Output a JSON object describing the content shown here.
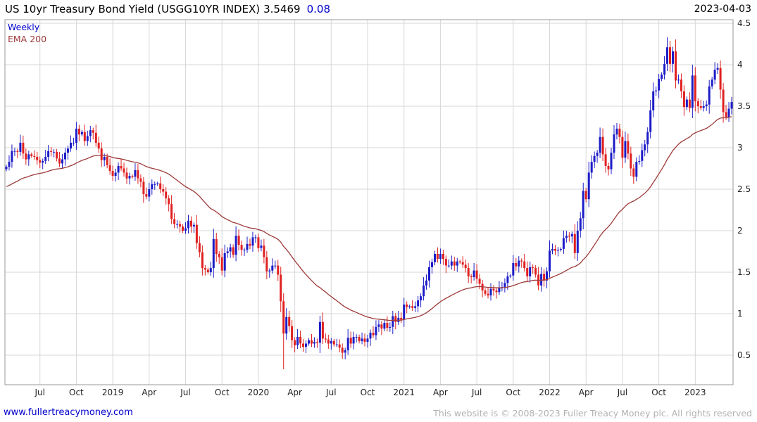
{
  "header": {
    "title": "US 10yr Treasury Bond Yield (USGG10YR INDEX)",
    "price": "3.5469",
    "change": "0.08",
    "date": "2023-04-03"
  },
  "legend": {
    "frequency": "Weekly",
    "overlay": "EMA 200"
  },
  "footer": {
    "site_link": "www.fullertreacymoney.com",
    "copyright": "This website is © 2008-2023 Fuller Treacy Money plc. All rights reserved"
  },
  "chart_data": {
    "type": "candlestick",
    "title": "US 10yr Treasury Bond Yield (USGG10YR INDEX)",
    "frequency": "Weekly",
    "overlay": "EMA 200",
    "last_price": 3.5469,
    "change": 0.08,
    "ylim": [
      0.14,
      4.54
    ],
    "grid": true,
    "y_ticks": [
      {
        "v": 4.5,
        "label": "4.5"
      },
      {
        "v": 4.0,
        "label": "4"
      },
      {
        "v": 3.5,
        "label": "3.5"
      },
      {
        "v": 3.0,
        "label": "3"
      },
      {
        "v": 2.5,
        "label": "2.5"
      },
      {
        "v": 2.0,
        "label": "2"
      },
      {
        "v": 1.5,
        "label": "1.5"
      },
      {
        "v": 1.0,
        "label": "1"
      },
      {
        "v": 0.5,
        "label": "0.5"
      }
    ],
    "x_ticks": [
      {
        "label": "Jul",
        "index": 12
      },
      {
        "label": "Oct",
        "index": 25
      },
      {
        "label": "2019",
        "index": 38
      },
      {
        "label": "Apr",
        "index": 51
      },
      {
        "label": "Jul",
        "index": 64
      },
      {
        "label": "Oct",
        "index": 77
      },
      {
        "label": "2020",
        "index": 90
      },
      {
        "label": "Apr",
        "index": 103
      },
      {
        "label": "Jul",
        "index": 116
      },
      {
        "label": "Oct",
        "index": 129
      },
      {
        "label": "2021",
        "index": 142
      },
      {
        "label": "Apr",
        "index": 155
      },
      {
        "label": "Jul",
        "index": 168
      },
      {
        "label": "Oct",
        "index": 181
      },
      {
        "label": "2022",
        "index": 194
      },
      {
        "label": "Apr",
        "index": 207
      },
      {
        "label": "Jul",
        "index": 220
      },
      {
        "label": "Oct",
        "index": 233
      },
      {
        "label": "2023",
        "index": 246
      }
    ],
    "first_open": 2.74,
    "weekly_closes": [
      2.77,
      2.83,
      2.96,
      2.96,
      2.95,
      3.06,
      2.93,
      2.86,
      2.92,
      2.9,
      2.89,
      2.85,
      2.82,
      2.84,
      2.89,
      2.96,
      2.95,
      2.95,
      2.87,
      2.81,
      2.86,
      2.94,
      2.99,
      3.06,
      3.06,
      3.23,
      3.16,
      3.19,
      3.08,
      3.14,
      3.21,
      3.18,
      3.06,
      2.99,
      2.85,
      2.89,
      2.79,
      2.72,
      2.66,
      2.7,
      2.78,
      2.75,
      2.7,
      2.63,
      2.66,
      2.65,
      2.73,
      2.63,
      2.59,
      2.44,
      2.41,
      2.5,
      2.56,
      2.56,
      2.57,
      2.5,
      2.47,
      2.39,
      2.32,
      2.14,
      2.08,
      2.08,
      2.05,
      2.0,
      2.03,
      2.12,
      2.05,
      2.07,
      1.85,
      1.74,
      1.55,
      1.53,
      1.5,
      1.55,
      1.9,
      1.72,
      1.68,
      1.52,
      1.73,
      1.75,
      1.8,
      1.71,
      1.94,
      1.83,
      1.77,
      1.77,
      1.84,
      1.82,
      1.92,
      1.92,
      1.79,
      1.82,
      1.68,
      1.51,
      1.52,
      1.58,
      1.58,
      1.47,
      1.15,
      0.76,
      0.96,
      0.85,
      0.68,
      0.62,
      0.72,
      0.64,
      0.6,
      0.64,
      0.68,
      0.64,
      0.66,
      0.65,
      0.9,
      0.7,
      0.69,
      0.64,
      0.67,
      0.63,
      0.63,
      0.59,
      0.53,
      0.56,
      0.71,
      0.64,
      0.72,
      0.72,
      0.67,
      0.7,
      0.66,
      0.7,
      0.77,
      0.74,
      0.84,
      0.87,
      0.82,
      0.89,
      0.83,
      0.84,
      0.97,
      0.9,
      0.95,
      0.93,
      1.11,
      1.08,
      1.09,
      1.07,
      1.09,
      1.16,
      1.21,
      1.34,
      1.4,
      1.56,
      1.62,
      1.72,
      1.66,
      1.72,
      1.66,
      1.58,
      1.58,
      1.63,
      1.58,
      1.63,
      1.62,
      1.59,
      1.55,
      1.45,
      1.44,
      1.52,
      1.42,
      1.36,
      1.28,
      1.24,
      1.22,
      1.3,
      1.28,
      1.26,
      1.31,
      1.32,
      1.37,
      1.45,
      1.46,
      1.61,
      1.57,
      1.64,
      1.63,
      1.55,
      1.45,
      1.56,
      1.55,
      1.47,
      1.34,
      1.48,
      1.4,
      1.51,
      1.76,
      1.78,
      1.76,
      1.77,
      1.78,
      1.91,
      1.94,
      1.93,
      1.96,
      1.73,
      2.0,
      2.15,
      2.48,
      2.38,
      2.7,
      2.83,
      2.9,
      2.94,
      3.13,
      2.92,
      2.78,
      2.74,
      2.94,
      3.16,
      3.23,
      3.13,
      2.88,
      3.08,
      2.93,
      2.75,
      2.65,
      2.83,
      2.84,
      2.97,
      3.04,
      3.19,
      3.45,
      3.68,
      3.69,
      3.83,
      3.88,
      4.01,
      4.21,
      4.01,
      4.16,
      3.81,
      3.82,
      3.68,
      3.49,
      3.58,
      3.48,
      3.87,
      3.56,
      3.5,
      3.48,
      3.5,
      3.52,
      3.74,
      3.82,
      3.94,
      3.96,
      3.7,
      3.43,
      3.37,
      3.47,
      3.55
    ],
    "overrides": [
      {
        "index": 99,
        "low": 0.33
      },
      {
        "index": 236,
        "high": 4.33
      }
    ],
    "ema": {
      "label": "EMA 200",
      "seed": 2.52,
      "alpha": 0.045
    },
    "colors": {
      "up": "#1c1cc8",
      "down": "#e02020",
      "ema": "#9e3a3a",
      "grid": "#d7d7d7",
      "border": "#9a9a9a",
      "accent_blue": "#0000cd",
      "copyright_gray": "#b2b2b2"
    }
  }
}
